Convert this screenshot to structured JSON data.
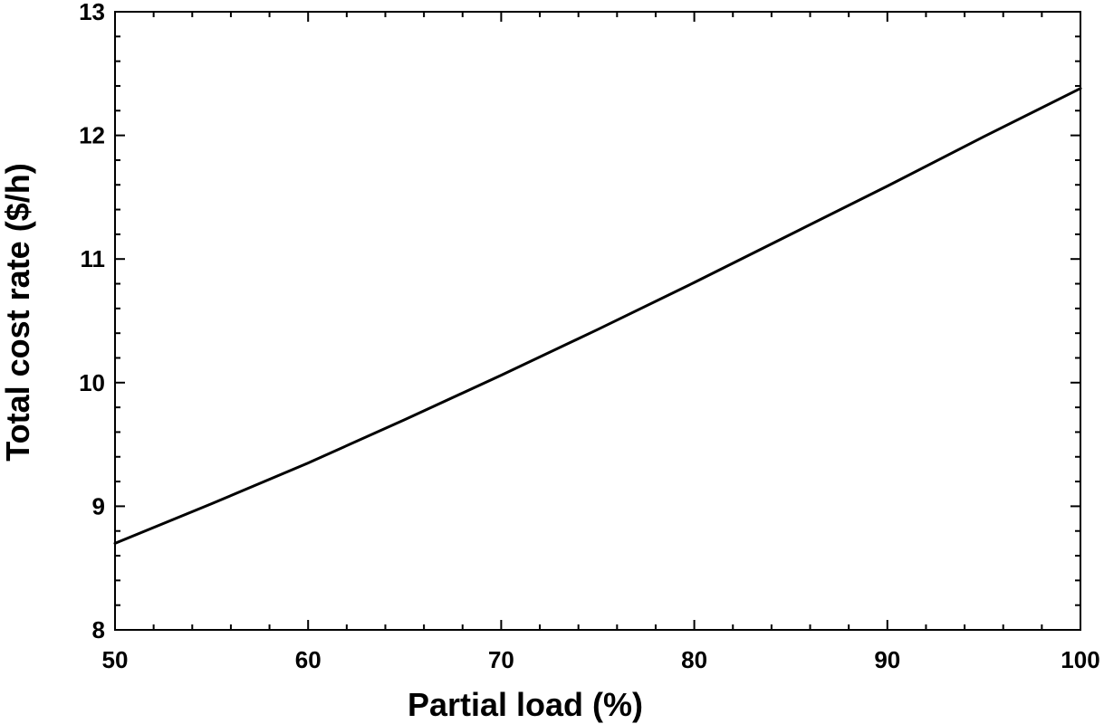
{
  "chart_data": {
    "type": "line",
    "xlabel": "Partial load (%)",
    "ylabel": "Total cost rate ($/h)",
    "xlim": [
      50,
      100
    ],
    "ylim": [
      8,
      13
    ],
    "x_ticks": [
      50,
      60,
      70,
      80,
      90,
      100
    ],
    "y_ticks": [
      8,
      9,
      10,
      11,
      12,
      13
    ],
    "grid": false,
    "series": [
      {
        "x": [
          50,
          55,
          60,
          65,
          70,
          75,
          80,
          85,
          90,
          95,
          100
        ],
        "y": [
          8.7,
          9.02,
          9.35,
          9.7,
          10.06,
          10.43,
          10.81,
          11.2,
          11.59,
          11.99,
          12.38
        ],
        "color": "#000000"
      }
    ]
  }
}
